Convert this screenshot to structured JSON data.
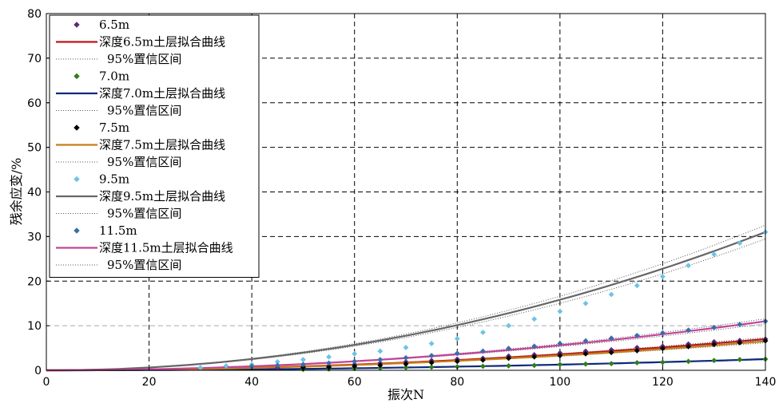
{
  "chart_data": {
    "type": "scatter",
    "title": "",
    "xlabel": "振次N",
    "ylabel": "残余应变/%",
    "xlim": [
      0,
      140
    ],
    "ylim": [
      0,
      80
    ],
    "x_ticks": [
      "0",
      "20",
      "40",
      "60",
      "80",
      "100",
      "120",
      "140"
    ],
    "y_ticks": [
      "0",
      "10",
      "20",
      "30",
      "40",
      "50",
      "60",
      "70",
      "80"
    ],
    "grid": true,
    "legend_position": "top-left",
    "series": [
      {
        "name": "6.5m",
        "marker_color": "#5a2a7a",
        "fit_name": "深度6.5m土层拟合曲线",
        "fit_color": "#c0141a",
        "ci_name": "95%置信区间",
        "fit_coef": 7.0,
        "points": [
          [
            45,
            0.5
          ],
          [
            50,
            0.7
          ],
          [
            55,
            0.9
          ],
          [
            60,
            1.3
          ],
          [
            65,
            1.6
          ],
          [
            70,
            1.9
          ],
          [
            75,
            2.2
          ],
          [
            80,
            2.5
          ],
          [
            85,
            2.7
          ],
          [
            90,
            3.2
          ],
          [
            95,
            3.5
          ],
          [
            100,
            3.9
          ],
          [
            105,
            4.3
          ],
          [
            110,
            4.6
          ],
          [
            115,
            5.1
          ],
          [
            120,
            5.4
          ],
          [
            125,
            5.9
          ],
          [
            130,
            6.4
          ],
          [
            135,
            6.7
          ],
          [
            140,
            7.0
          ]
        ]
      },
      {
        "name": "7.0m",
        "marker_color": "#2e7d1e",
        "fit_name": "深度7.0m土层拟合曲线",
        "fit_color": "#0d2a78",
        "ci_name": "95%置信区间",
        "fit_coef": 2.5,
        "points": [
          [
            50,
            0.2
          ],
          [
            55,
            0.3
          ],
          [
            60,
            0.4
          ],
          [
            65,
            0.5
          ],
          [
            70,
            0.6
          ],
          [
            75,
            0.7
          ],
          [
            80,
            0.8
          ],
          [
            85,
            0.9
          ],
          [
            90,
            1.0
          ],
          [
            95,
            1.1
          ],
          [
            100,
            1.3
          ],
          [
            105,
            1.4
          ],
          [
            110,
            1.5
          ],
          [
            115,
            1.7
          ],
          [
            120,
            1.8
          ],
          [
            125,
            2.0
          ],
          [
            130,
            2.2
          ],
          [
            135,
            2.4
          ],
          [
            140,
            2.5
          ]
        ]
      },
      {
        "name": "7.5m",
        "marker_color": "#000000",
        "fit_name": "深度7.5m土层拟合曲线",
        "fit_color": "#c67d14",
        "ci_name": "95%置信区间",
        "fit_coef": 6.5,
        "points": [
          [
            50,
            0.6
          ],
          [
            55,
            0.7
          ],
          [
            60,
            0.9
          ],
          [
            65,
            1.1
          ],
          [
            70,
            1.4
          ],
          [
            75,
            1.7
          ],
          [
            80,
            2.0
          ],
          [
            85,
            2.3
          ],
          [
            90,
            2.7
          ],
          [
            95,
            3.0
          ],
          [
            100,
            3.3
          ],
          [
            105,
            3.7
          ],
          [
            110,
            4.0
          ],
          [
            115,
            4.4
          ],
          [
            120,
            4.9
          ],
          [
            125,
            5.3
          ],
          [
            130,
            5.8
          ],
          [
            135,
            6.2
          ],
          [
            140,
            6.6
          ]
        ]
      },
      {
        "name": "9.5m",
        "marker_color": "#6ec3e6",
        "fit_name": "深度9.5m土层拟合曲线",
        "fit_color": "#666666",
        "ci_name": "95%置信区间",
        "fit_coef": 31.0,
        "points": [
          [
            30,
            0.6
          ],
          [
            35,
            1.0
          ],
          [
            40,
            1.3
          ],
          [
            45,
            1.9
          ],
          [
            50,
            2.4
          ],
          [
            55,
            3.0
          ],
          [
            60,
            3.7
          ],
          [
            65,
            4.3
          ],
          [
            70,
            5.1
          ],
          [
            75,
            6.0
          ],
          [
            80,
            7.1
          ],
          [
            85,
            8.5
          ],
          [
            90,
            10.0
          ],
          [
            95,
            11.5
          ],
          [
            100,
            13.2
          ],
          [
            105,
            15.0
          ],
          [
            110,
            17.0
          ],
          [
            115,
            19.0
          ],
          [
            120,
            21.0
          ],
          [
            125,
            23.5
          ],
          [
            130,
            26.0
          ],
          [
            135,
            28.5
          ],
          [
            140,
            31.0
          ]
        ]
      },
      {
        "name": "11.5m",
        "marker_color": "#3a6ea8",
        "fit_name": "深度11.5m土层拟合曲线",
        "fit_color": "#c2449a",
        "ci_name": "95%置信区间",
        "fit_coef": 11.0,
        "points": [
          [
            40,
            0.9
          ],
          [
            45,
            1.1
          ],
          [
            50,
            1.3
          ],
          [
            55,
            1.6
          ],
          [
            60,
            2.0
          ],
          [
            65,
            2.4
          ],
          [
            70,
            2.8
          ],
          [
            75,
            3.3
          ],
          [
            80,
            3.8
          ],
          [
            85,
            4.3
          ],
          [
            90,
            4.9
          ],
          [
            95,
            5.4
          ],
          [
            100,
            6.0
          ],
          [
            105,
            6.6
          ],
          [
            110,
            7.2
          ],
          [
            115,
            7.8
          ],
          [
            120,
            8.4
          ],
          [
            125,
            9.0
          ],
          [
            130,
            9.6
          ],
          [
            135,
            10.3
          ],
          [
            140,
            11.0
          ]
        ]
      }
    ]
  }
}
